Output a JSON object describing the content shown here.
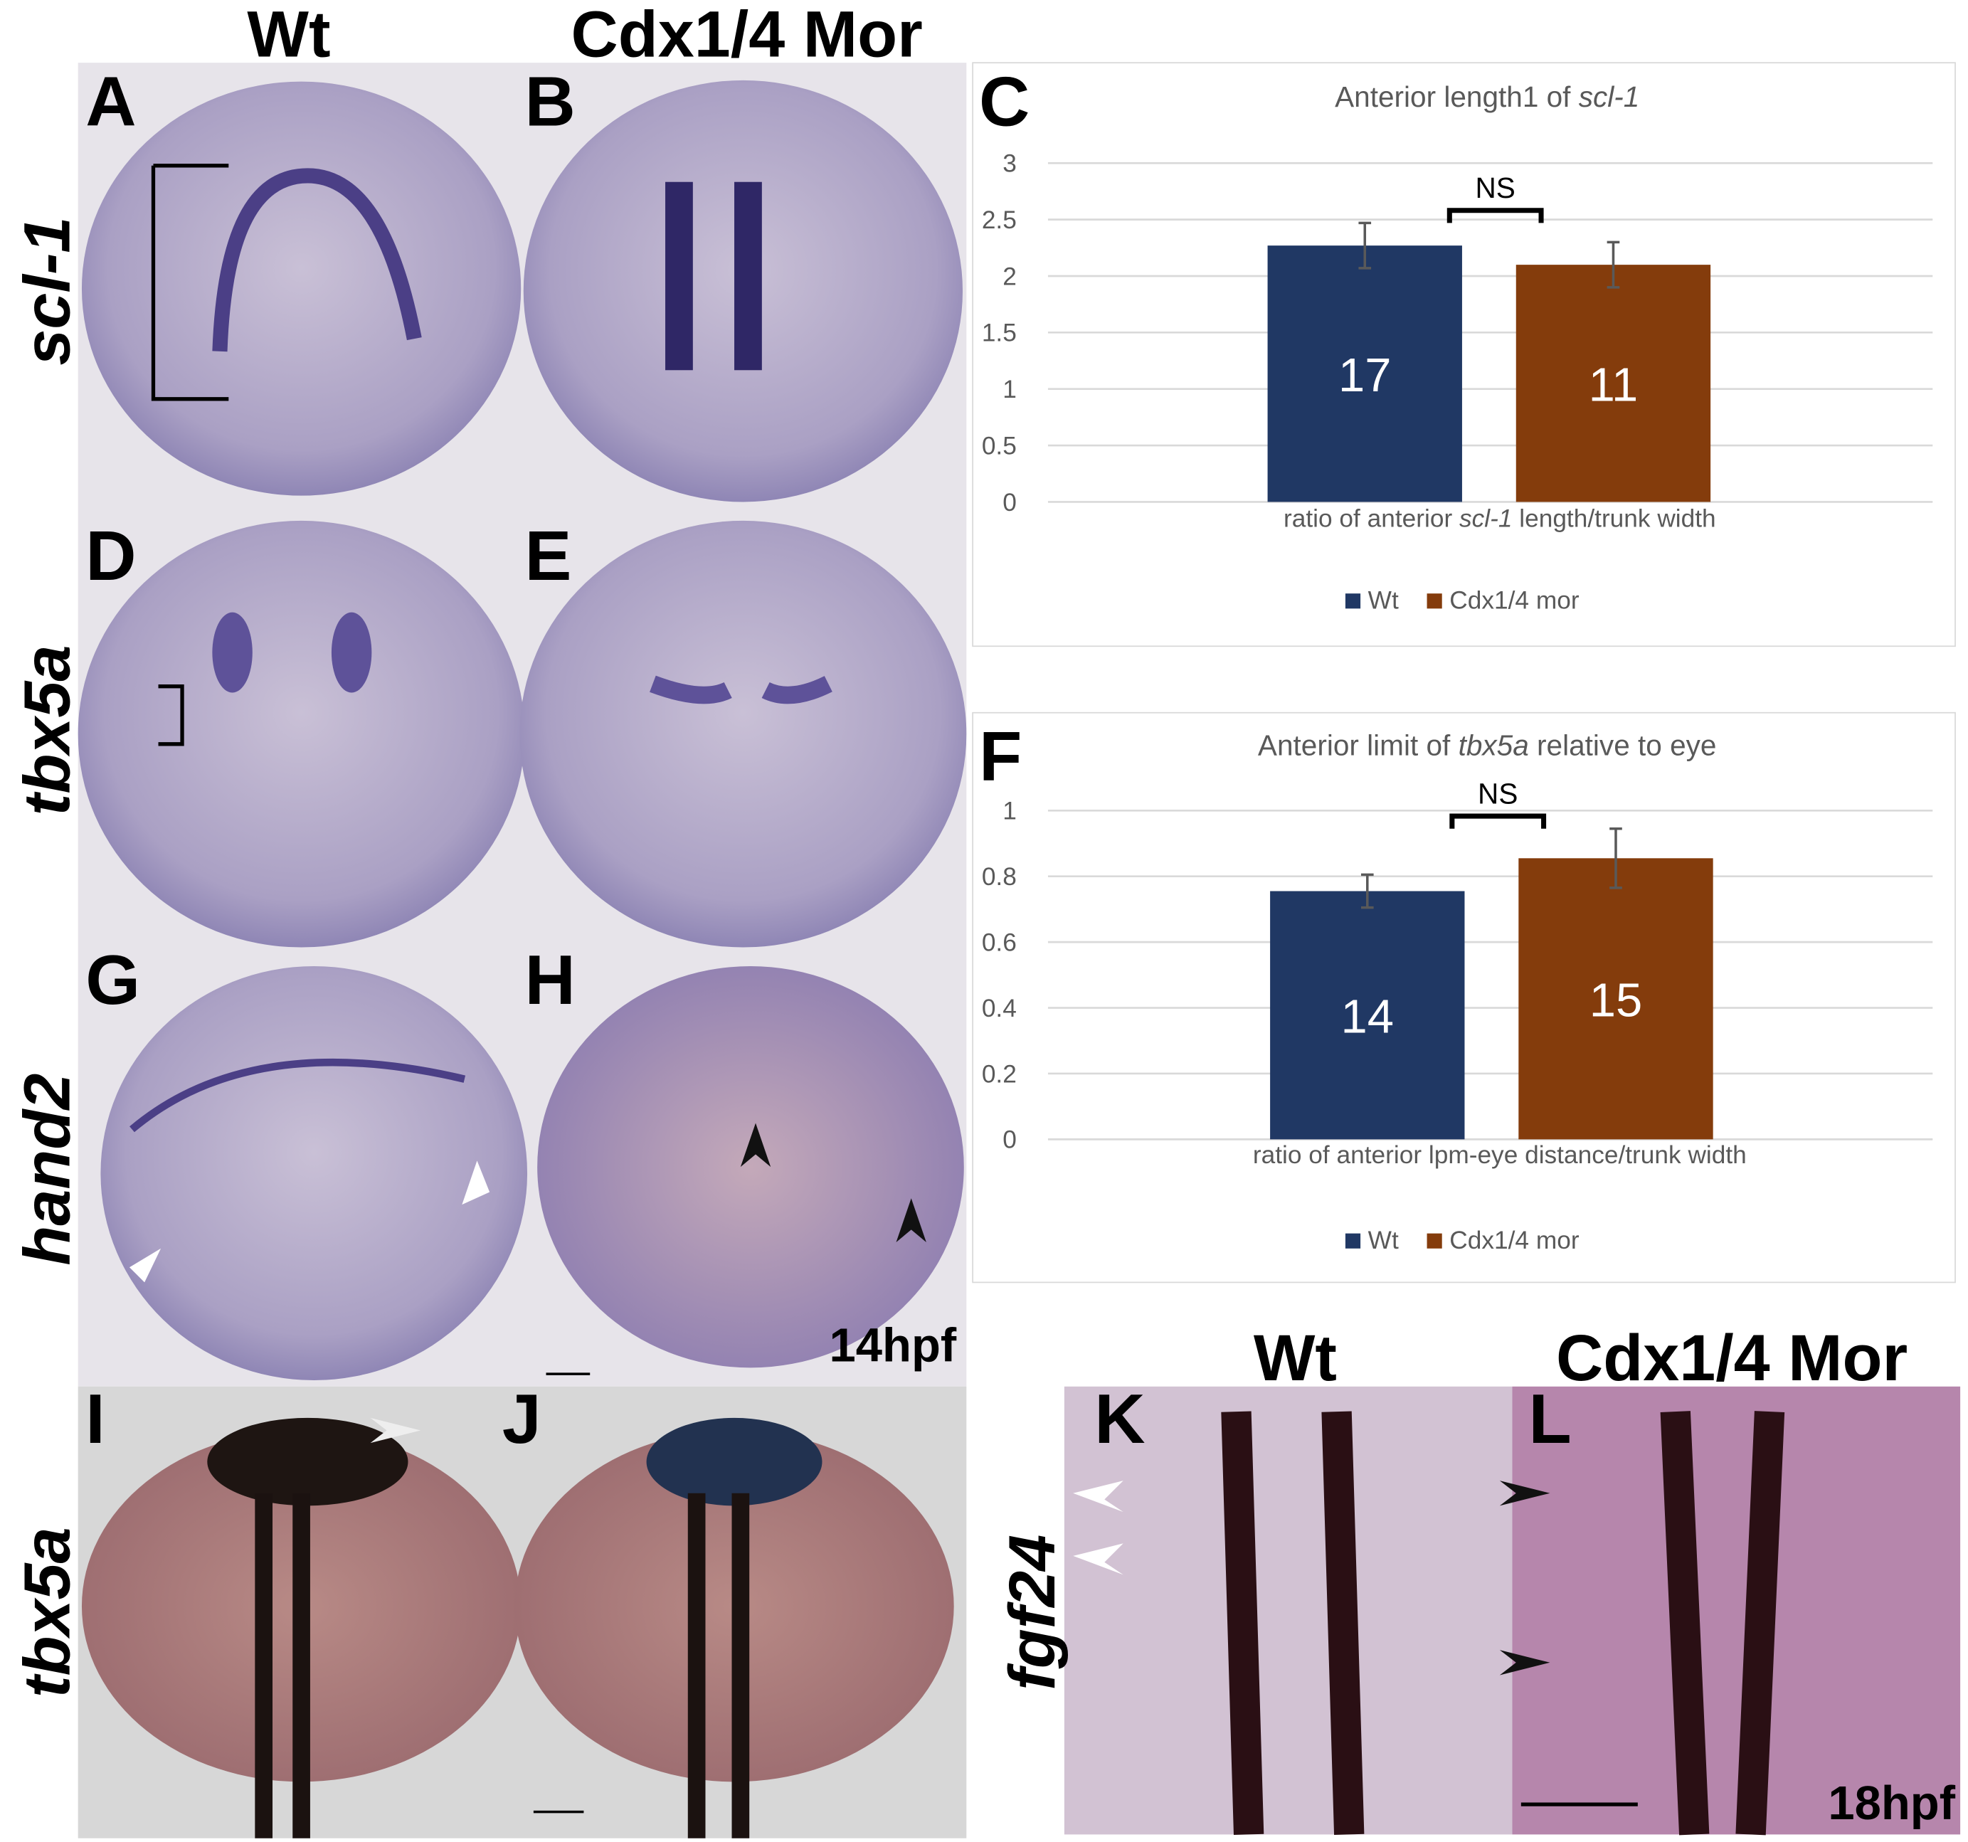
{
  "column_headers": [
    "Wt",
    "Cdx1/4 Mor"
  ],
  "row_labels": [
    "scl-1",
    "tbx5a",
    "hand2",
    "tbx5a",
    "fgf24"
  ],
  "panel_labels": [
    "A",
    "B",
    "C",
    "D",
    "E",
    "F",
    "G",
    "H",
    "I",
    "J",
    "K",
    "L"
  ],
  "stage_labels": [
    "14hpf",
    "18hpf"
  ],
  "bottom_headers": [
    "Wt",
    "Cdx1/4 Mor"
  ],
  "charts": [
    {
      "type": "bar",
      "title": [
        "Anterior length1 of ",
        "scl-1"
      ],
      "x_label": [
        "ratio of anterior ",
        "scl-1",
        " length/trunk width"
      ],
      "ylim": [
        0,
        3
      ],
      "yticks": [
        0,
        0.5,
        1,
        1.5,
        2,
        2.5,
        3
      ],
      "grid": true,
      "annotation": "NS",
      "legend": "bottom",
      "series": [
        {
          "name": "Wt",
          "color": "#203864",
          "values": [
            2.27
          ],
          "errors": [
            0.2
          ],
          "n": [
            17
          ]
        },
        {
          "name": "Cdx1/4 mor",
          "color": "#843c0c",
          "values": [
            2.1
          ],
          "errors": [
            0.2
          ],
          "n": [
            11
          ]
        }
      ]
    },
    {
      "type": "bar",
      "title": [
        "Anterior limit of ",
        "tbx5a",
        " relative to eye"
      ],
      "x_label": [
        "ratio of anterior lpm-eye distance/trunk width"
      ],
      "ylim": [
        0,
        1
      ],
      "yticks": [
        0,
        0.2,
        0.4,
        0.6,
        0.8,
        1
      ],
      "grid": true,
      "annotation": "NS",
      "legend": "bottom",
      "series": [
        {
          "name": "Wt",
          "color": "#203864",
          "values": [
            0.755
          ],
          "errors": [
            0.05
          ],
          "n": [
            14
          ]
        },
        {
          "name": "Cdx1/4 mor",
          "color": "#843c0c",
          "values": [
            0.855
          ],
          "errors": [
            0.09
          ],
          "n": [
            15
          ]
        }
      ]
    }
  ]
}
